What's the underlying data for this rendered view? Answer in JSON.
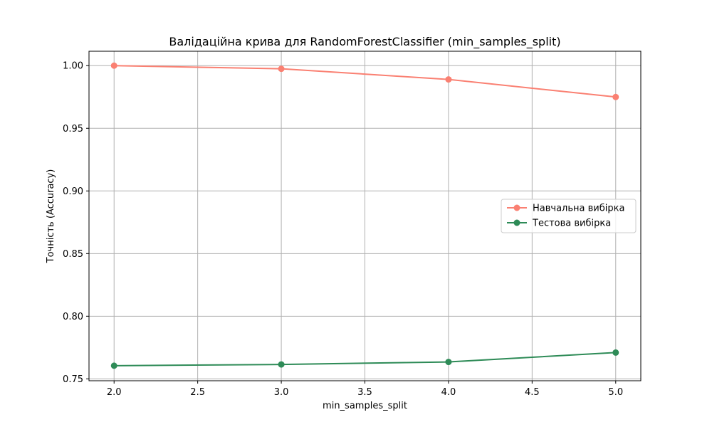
{
  "chart_data": {
    "type": "line",
    "title": "Валідаційна крива для RandomForestClassifier (min_samples_split)",
    "xlabel": "min_samples_split",
    "ylabel": "Точність (Accuracy)",
    "x": [
      2,
      3,
      4,
      5
    ],
    "xlim": [
      1.85,
      5.15
    ],
    "ylim": [
      0.7485,
      1.0115
    ],
    "xticks": [
      2.0,
      2.5,
      3.0,
      3.5,
      4.0,
      4.5,
      5.0
    ],
    "xtick_labels": [
      "2.0",
      "2.5",
      "3.0",
      "3.5",
      "4.0",
      "4.5",
      "5.0"
    ],
    "yticks": [
      0.75,
      0.8,
      0.85,
      0.9,
      0.95,
      1.0
    ],
    "ytick_labels": [
      "0.75",
      "0.80",
      "0.85",
      "0.90",
      "0.95",
      "1.00"
    ],
    "grid": true,
    "legend_position": "center-right",
    "series": [
      {
        "name": "Навчальна вибірка",
        "color": "#fa8072",
        "marker": "circle",
        "values": [
          1.0,
          0.9975,
          0.989,
          0.975
        ]
      },
      {
        "name": "Тестова вибірка",
        "color": "#2e8b57",
        "marker": "circle",
        "values": [
          0.7605,
          0.7615,
          0.7635,
          0.771
        ]
      }
    ]
  }
}
